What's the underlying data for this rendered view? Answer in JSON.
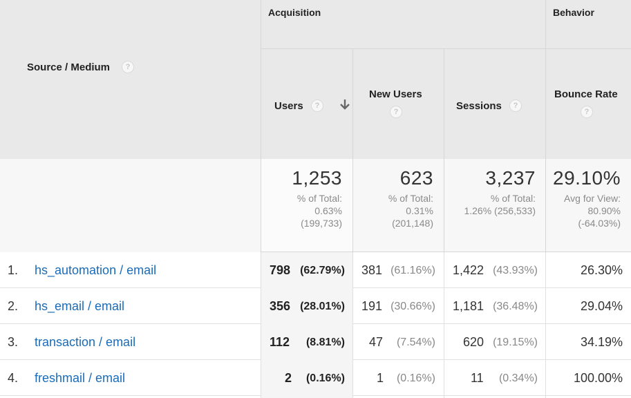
{
  "header": {
    "source_medium": "Source / Medium",
    "group_acquisition": "Acquisition",
    "group_behavior": "Behavior",
    "col_users": "Users",
    "col_new_users": "New Users",
    "col_sessions": "Sessions",
    "col_bounce_rate": "Bounce Rate",
    "help_glyph": "?"
  },
  "summary": {
    "users": {
      "value": "1,253",
      "l1": "% of Total:",
      "l2": "0.63%",
      "l3": "(199,733)"
    },
    "new_users": {
      "value": "623",
      "l1": "% of Total:",
      "l2": "0.31%",
      "l3": "(201,148)"
    },
    "sessions": {
      "value": "3,237",
      "l1": "% of Total:",
      "l2": "1.26% (256,533)"
    },
    "bounce_rate": {
      "value": "29.10%",
      "l1": "Avg for View:",
      "l2": "80.90%",
      "l3": "(-64.03%)"
    }
  },
  "rows": [
    {
      "index": "1.",
      "source": "hs_automation / email",
      "users": "798",
      "users_pct": "(62.79%)",
      "new_users": "381",
      "new_users_pct": "(61.16%)",
      "sessions": "1,422",
      "sessions_pct": "(43.93%)",
      "bounce_rate": "26.30%"
    },
    {
      "index": "2.",
      "source": "hs_email / email",
      "users": "356",
      "users_pct": "(28.01%)",
      "new_users": "191",
      "new_users_pct": "(30.66%)",
      "sessions": "1,181",
      "sessions_pct": "(36.48%)",
      "bounce_rate": "29.04%"
    },
    {
      "index": "3.",
      "source": "transaction / email",
      "users": "112",
      "users_pct": "(8.81%)",
      "new_users": "47",
      "new_users_pct": "(7.54%)",
      "sessions": "620",
      "sessions_pct": "(19.15%)",
      "bounce_rate": "34.19%"
    },
    {
      "index": "4.",
      "source": "freshmail / email",
      "users": "2",
      "users_pct": "(0.16%)",
      "new_users": "1",
      "new_users_pct": "(0.16%)",
      "sessions": "11",
      "sessions_pct": "(0.34%)",
      "bounce_rate": "100.00%"
    }
  ],
  "colors": {
    "link": "#1a6bb8",
    "header_bg": "#e9e9e9",
    "summary_bg": "#f7f7f7"
  }
}
